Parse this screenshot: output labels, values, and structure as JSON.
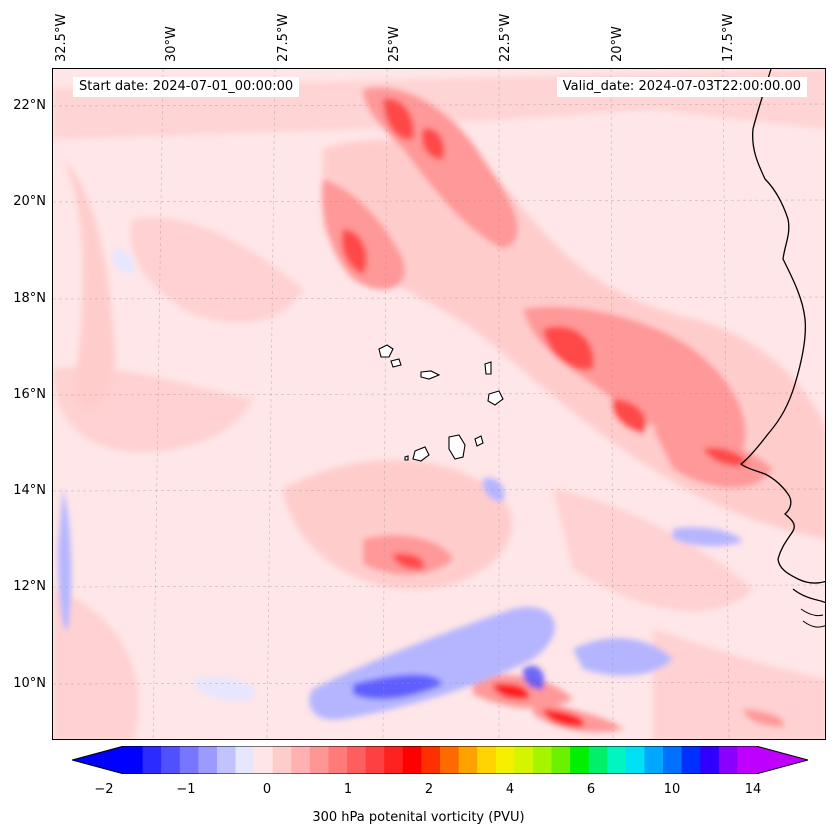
{
  "start_date_label": "Start date: 2024-07-01_00:00:00",
  "valid_date_label": "Valid_date: 2024-07-03T22:00:00.00",
  "lon_labels": [
    "32.5°W",
    "30°W",
    "27.5°W",
    "25°W",
    "22.5°W",
    "20°W",
    "17.5°W"
  ],
  "lat_labels": [
    "22°N",
    "20°N",
    "18°N",
    "16°N",
    "14°N",
    "12°N",
    "10°N"
  ],
  "colorbar": {
    "title": "300 hPa potenital vorticity (PVU)",
    "tick_labels": [
      "−2",
      "−1",
      "0",
      "1",
      "2",
      "4",
      "6",
      "10",
      "14"
    ],
    "colors": [
      "#0000ff",
      "#2b2bff",
      "#5050ff",
      "#7676ff",
      "#9b9bff",
      "#c2c2ff",
      "#e6e6ff",
      "#ffe6e6",
      "#ffcccc",
      "#ffb0b0",
      "#ff9696",
      "#ff7a7a",
      "#ff5e5e",
      "#ff4040",
      "#ff2020",
      "#ff0000",
      "#ff3000",
      "#ff6a00",
      "#ffa200",
      "#ffd400",
      "#f5f000",
      "#d4f500",
      "#a6f500",
      "#6af000",
      "#00f000",
      "#00f06a",
      "#00f5c0",
      "#00e0f5",
      "#00a8ff",
      "#0070ff",
      "#0030ff",
      "#3000ff",
      "#8a00ff",
      "#c000ff"
    ],
    "extend_low_color": "#0000ff",
    "extend_high_color": "#c000ff"
  },
  "colors": {
    "background_field": "#ffe6e8",
    "pv_light": "#ffcccc",
    "pv_mid": "#ff9898",
    "pv_high": "#ff4a4a",
    "pv_max": "#ff1a1a",
    "neg_light": "#e6e6ff",
    "neg_mid": "#b5b5ff",
    "neg_high": "#4a4aff",
    "coastline": "#000000"
  }
}
